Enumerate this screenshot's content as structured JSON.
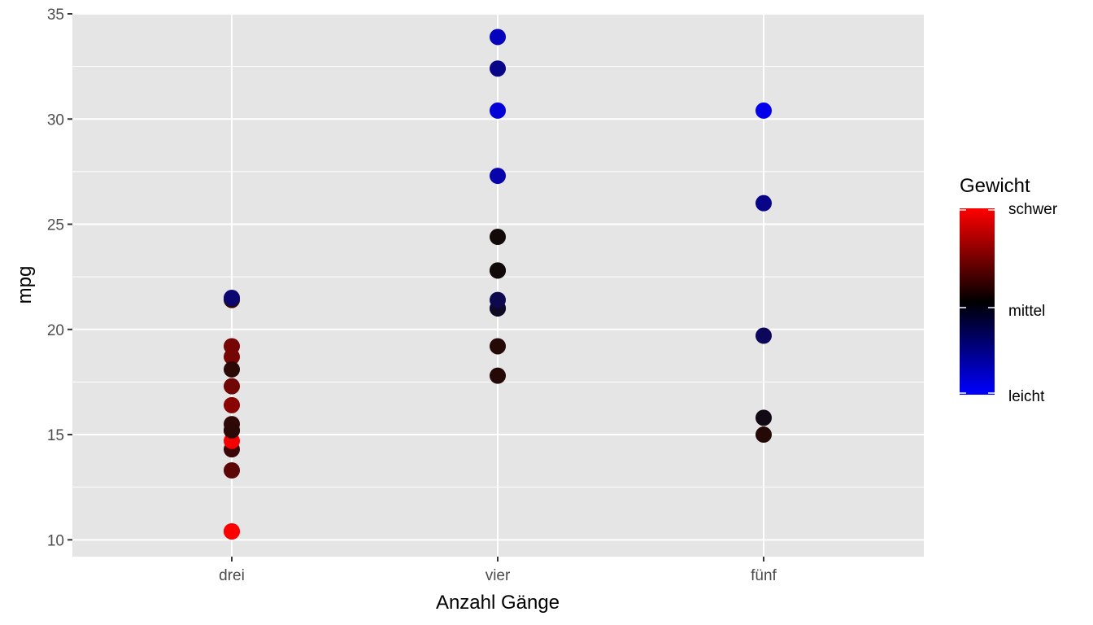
{
  "chart_data": {
    "type": "scatter",
    "xlabel": "Anzahl Gänge",
    "ylabel": "mpg",
    "categories": [
      "drei",
      "vier",
      "fünf"
    ],
    "ylim": [
      9.2,
      35.0
    ],
    "yticks": [
      10,
      15,
      20,
      25,
      30,
      35
    ],
    "grid": true,
    "legend": {
      "title": "Gewicht",
      "placement": "right",
      "labels": [
        "schwer",
        "mittel",
        "leicht"
      ],
      "colors": {
        "high": "#ff0000",
        "mid": "#000000",
        "low": "#0000ff"
      }
    },
    "colors": {
      "panel": "#e5e5e5",
      "grid": "#ffffff"
    },
    "points": [
      {
        "x": "drei",
        "y": 21.4,
        "w": 0.14
      },
      {
        "x": "drei",
        "y": 18.7,
        "w": 0.4
      },
      {
        "x": "drei",
        "y": 18.1,
        "w": 0.12
      },
      {
        "x": "drei",
        "y": 14.3,
        "w": 0.18
      },
      {
        "x": "drei",
        "y": 16.4,
        "w": 0.48
      },
      {
        "x": "drei",
        "y": 17.3,
        "w": 0.38
      },
      {
        "x": "drei",
        "y": 15.2,
        "w": 0.38
      },
      {
        "x": "drei",
        "y": 10.4,
        "w": 1.0
      },
      {
        "x": "drei",
        "y": 10.4,
        "w": 1.0
      },
      {
        "x": "drei",
        "y": 14.7,
        "w": 0.95
      },
      {
        "x": "drei",
        "y": 21.5,
        "w": -0.38
      },
      {
        "x": "drei",
        "y": 15.5,
        "w": 0.14
      },
      {
        "x": "drei",
        "y": 15.2,
        "w": 0.12
      },
      {
        "x": "drei",
        "y": 13.3,
        "w": 0.3
      },
      {
        "x": "drei",
        "y": 19.2,
        "w": 0.4
      },
      {
        "x": "vier",
        "y": 21.0,
        "w": -0.16
      },
      {
        "x": "vier",
        "y": 21.0,
        "w": -0.1
      },
      {
        "x": "vier",
        "y": 22.8,
        "w": -0.2
      },
      {
        "x": "vier",
        "y": 24.4,
        "w": 0.02
      },
      {
        "x": "vier",
        "y": 22.8,
        "w": 0.0
      },
      {
        "x": "vier",
        "y": 19.2,
        "w": 0.1
      },
      {
        "x": "vier",
        "y": 17.8,
        "w": 0.1
      },
      {
        "x": "vier",
        "y": 32.4,
        "w": -0.48
      },
      {
        "x": "vier",
        "y": 30.4,
        "w": -0.82
      },
      {
        "x": "vier",
        "y": 33.9,
        "w": -0.7
      },
      {
        "x": "vier",
        "y": 27.3,
        "w": -0.62
      },
      {
        "x": "vier",
        "y": 21.4,
        "w": -0.25
      },
      {
        "x": "fünf",
        "y": 26.0,
        "w": -0.48
      },
      {
        "x": "fünf",
        "y": 30.4,
        "w": -0.9
      },
      {
        "x": "fünf",
        "y": 15.8,
        "w": -0.05
      },
      {
        "x": "fünf",
        "y": 19.7,
        "w": -0.3
      },
      {
        "x": "fünf",
        "y": 15.0,
        "w": 0.1
      }
    ]
  }
}
